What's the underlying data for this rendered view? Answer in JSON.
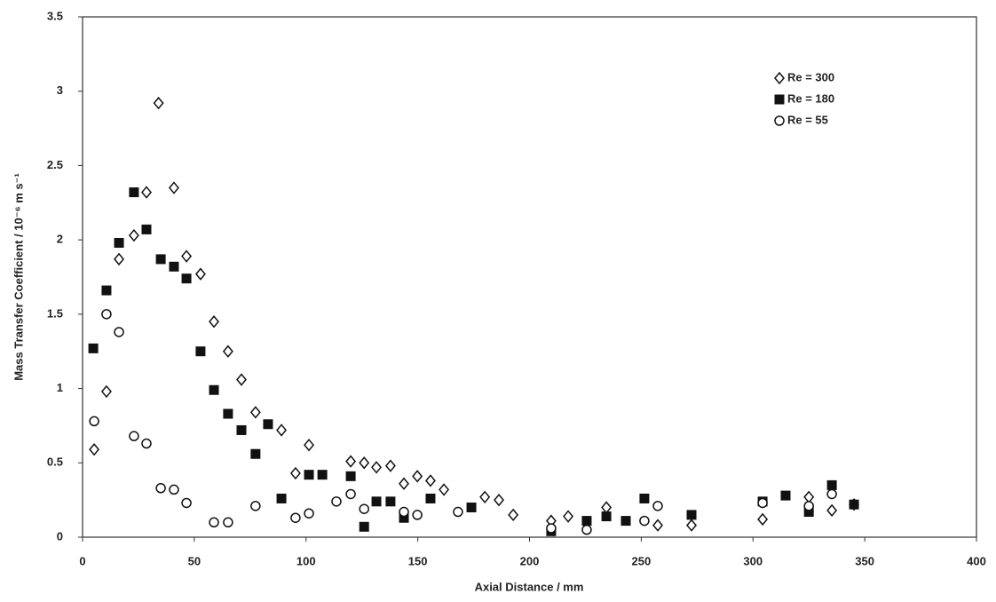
{
  "chart_data": {
    "type": "scatter",
    "x_label": "Axial Distance / mm",
    "y_label": "Mass Transfer Coefficient / 10⁻⁶ m s⁻¹",
    "xlim": [
      0,
      400
    ],
    "ylim": [
      0,
      3.5
    ],
    "xticks": [
      0,
      50,
      100,
      150,
      200,
      250,
      300,
      350,
      400
    ],
    "yticks": [
      0,
      0.5,
      1,
      1.5,
      2,
      2.5,
      3,
      3.5
    ],
    "legend": "upper right",
    "series": [
      {
        "name": "Re = 300",
        "color": "#111111",
        "marker": "diamond",
        "x": [
          5.2,
          10.7,
          16.3,
          23,
          28.6,
          34,
          40.9,
          46.5,
          52.8,
          58.8,
          65.1,
          71.1,
          77.4,
          89,
          95.3,
          101.3,
          120,
          126,
          131.5,
          137.8,
          143.8,
          149.8,
          155.7,
          161.7,
          180,
          186.3,
          192.7,
          209.7,
          217.3,
          234.4,
          257.4,
          272.5,
          304.3,
          325,
          335.3,
          345.2
        ],
        "values": [
          0.59,
          0.98,
          1.87,
          2.03,
          2.32,
          2.92,
          2.35,
          1.89,
          1.77,
          1.45,
          1.25,
          1.06,
          0.84,
          0.72,
          0.43,
          0.62,
          0.51,
          0.5,
          0.47,
          0.48,
          0.36,
          0.41,
          0.38,
          0.32,
          0.27,
          0.25,
          0.15,
          0.11,
          0.14,
          0.2,
          0.08,
          0.08,
          0.12,
          0.27,
          0.18,
          0.22
        ]
      },
      {
        "name": "Re = 180",
        "color": "#111111",
        "marker": "square",
        "x": [
          4.8,
          10.7,
          16.3,
          23,
          28.6,
          35,
          40.9,
          46.5,
          52.8,
          58.8,
          65.1,
          71.1,
          77.4,
          83,
          89,
          101.3,
          107.3,
          120,
          126,
          131.5,
          137.8,
          143.8,
          155.7,
          174,
          209.7,
          225.6,
          234.4,
          243.1,
          251.4,
          272.5,
          304.3,
          314.6,
          325,
          335.3,
          345.2
        ],
        "values": [
          1.27,
          1.66,
          1.98,
          2.32,
          2.07,
          1.87,
          1.82,
          1.74,
          1.25,
          0.99,
          0.83,
          0.72,
          0.56,
          0.76,
          0.26,
          0.42,
          0.42,
          0.41,
          0.07,
          0.24,
          0.24,
          0.13,
          0.26,
          0.2,
          0.04,
          0.11,
          0.14,
          0.11,
          0.26,
          0.15,
          0.24,
          0.28,
          0.17,
          0.35,
          0.22
        ]
      },
      {
        "name": "Re = 55",
        "color": "#111111",
        "marker": "circle",
        "x": [
          5.2,
          10.7,
          16.3,
          23,
          28.6,
          35,
          40.9,
          46.5,
          58.8,
          65.1,
          77.4,
          95.3,
          101.3,
          113.6,
          120,
          126,
          143.8,
          149.8,
          168,
          209.7,
          225.6,
          251.4,
          257.4,
          304.3,
          325,
          335.3
        ],
        "values": [
          0.78,
          1.5,
          1.38,
          0.68,
          0.63,
          0.33,
          0.32,
          0.23,
          0.1,
          0.1,
          0.21,
          0.13,
          0.16,
          0.24,
          0.29,
          0.19,
          0.17,
          0.15,
          0.17,
          0.06,
          0.05,
          0.11,
          0.21,
          0.23,
          0.21,
          0.29
        ]
      }
    ]
  }
}
